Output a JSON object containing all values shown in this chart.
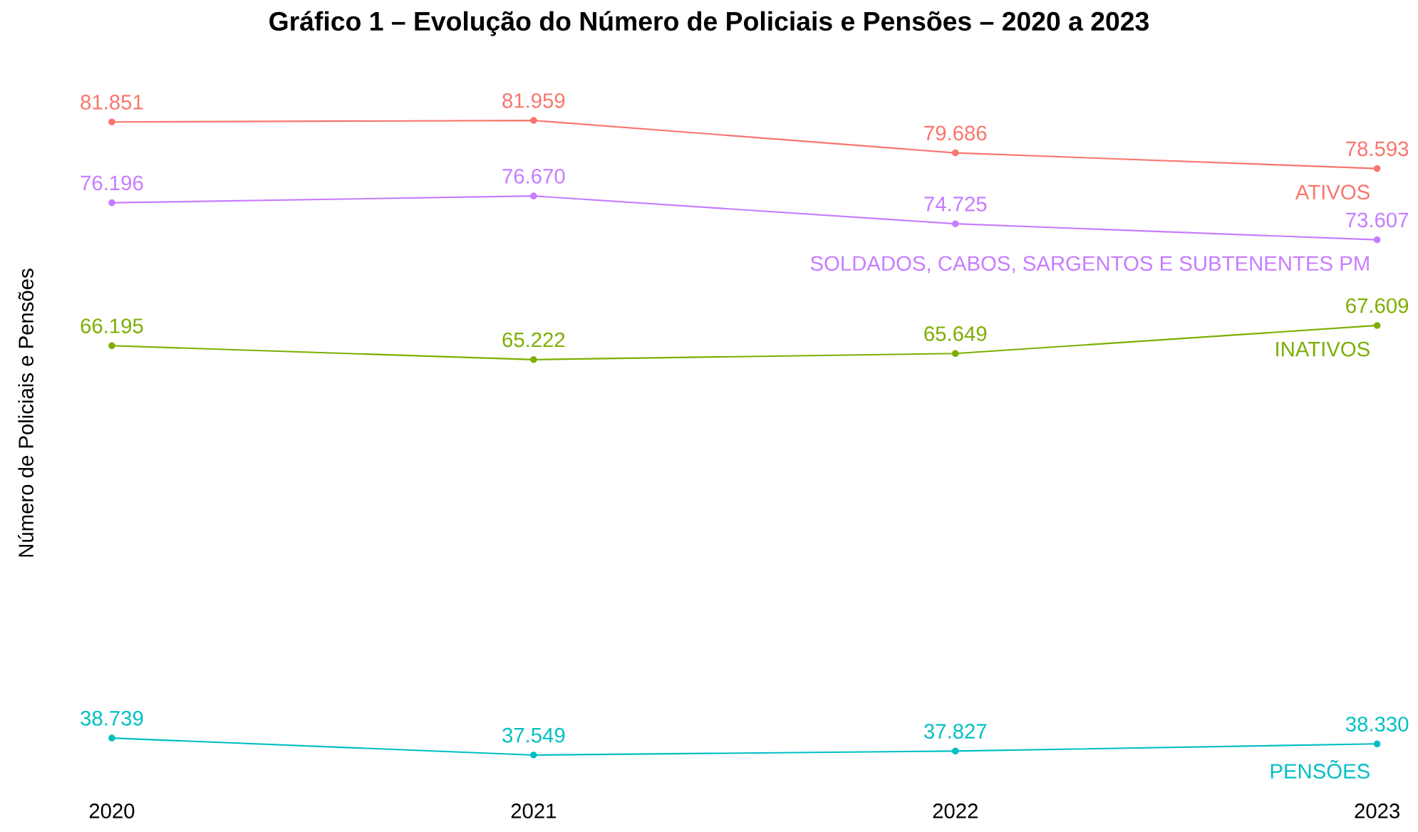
{
  "chart_data": {
    "type": "line",
    "title": "Gráfico 1 – Evolução do Número de Policiais e Pensões – 2020 a 2023",
    "ylabel": "Número de Policiais e Pensões",
    "categories": [
      "2020",
      "2021",
      "2022",
      "2023"
    ],
    "series": [
      {
        "name": "ATIVOS",
        "color": "#f8766d",
        "values": [
          81851,
          81959,
          79686,
          78593
        ],
        "value_labels": [
          "81.851",
          "81.959",
          "79.686",
          "78.593"
        ]
      },
      {
        "name": "SOLDADOS, CABOS, SARGENTOS E SUBTENENTES PM",
        "color": "#c77cff",
        "values": [
          76196,
          76670,
          74725,
          73607
        ],
        "value_labels": [
          "76.196",
          "76.670",
          "74.725",
          "73.607"
        ]
      },
      {
        "name": "INATIVOS",
        "color": "#7cae00",
        "values": [
          66195,
          65222,
          65649,
          67609
        ],
        "value_labels": [
          "66.195",
          "65.222",
          "65.649",
          "67.609"
        ]
      },
      {
        "name": "PENSÕES",
        "color": "#00bfc4",
        "values": [
          38739,
          37549,
          37827,
          38330
        ],
        "value_labels": [
          "38.739",
          "37.549",
          "37.827",
          "38.330"
        ]
      }
    ],
    "tick_labels": "x",
    "grid": false,
    "legend": false,
    "marker": "circle",
    "line_style": "solid"
  }
}
